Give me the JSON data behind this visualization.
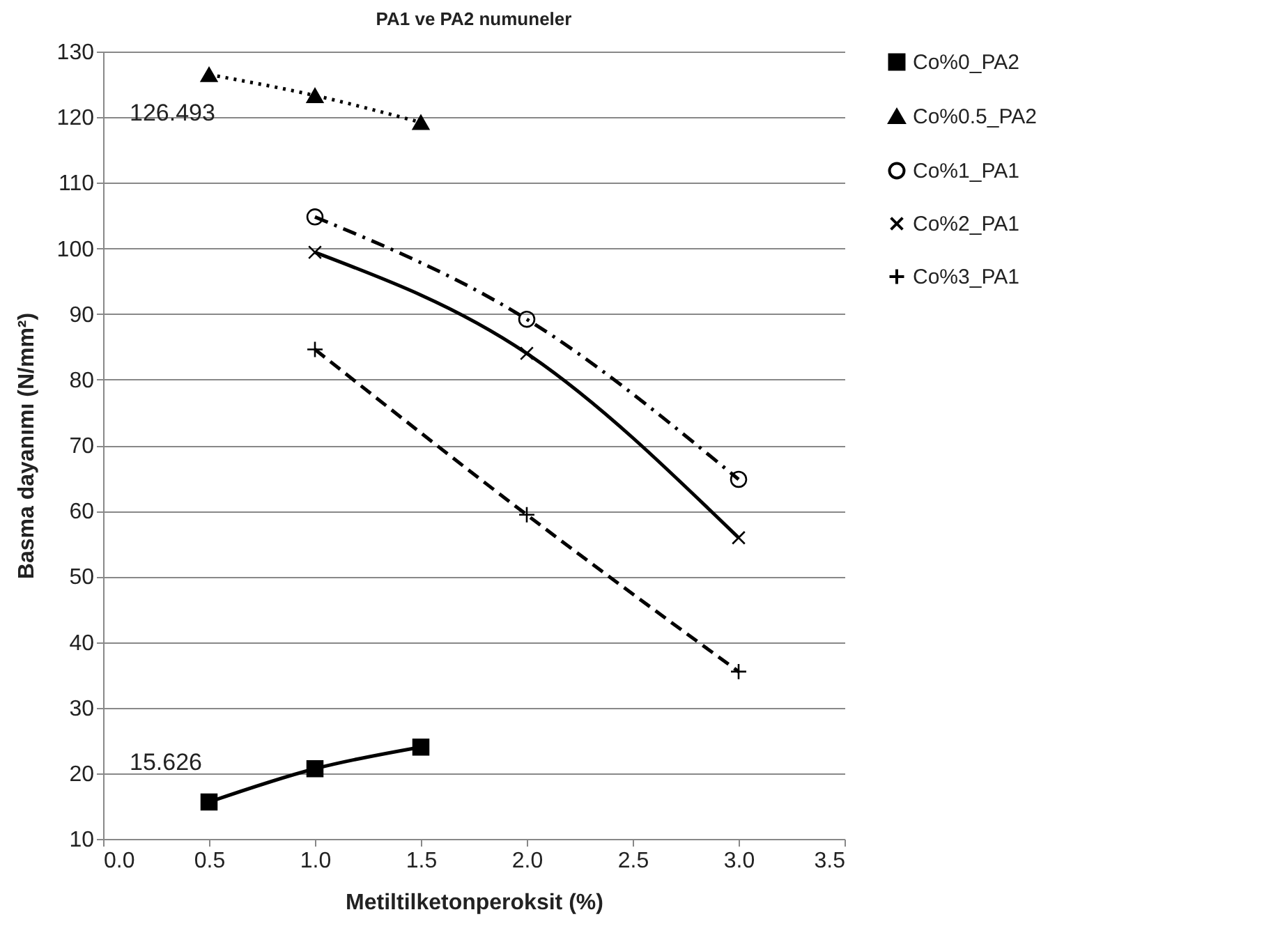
{
  "chart_data": {
    "type": "line",
    "title": "PA1 ve PA2 numuneler",
    "xlabel": "Metiltilketonperoksit (%)",
    "ylabel": "Basma dayanımı (N/mm²)",
    "xlim": [
      0,
      3.5
    ],
    "xticks": [
      {
        "value": 0,
        "label": "0.0"
      },
      {
        "value": 0.5,
        "label": "0.5"
      },
      {
        "value": 1,
        "label": "1.0"
      },
      {
        "value": 1.5,
        "label": "1.5"
      },
      {
        "value": 2,
        "label": "2.0"
      },
      {
        "value": 2.5,
        "label": "2.5"
      },
      {
        "value": 3,
        "label": "3.0"
      },
      {
        "value": 3.5,
        "label": "3.5"
      }
    ],
    "ylim": [
      10,
      130
    ],
    "yticks": [
      10,
      20,
      30,
      40,
      50,
      60,
      70,
      80,
      90,
      100,
      110,
      120,
      130
    ],
    "grid": "y",
    "legend": "right",
    "series": [
      {
        "name": "Co%0_PA2",
        "color": "#000000",
        "marker": "square",
        "line_style": "solid",
        "x": [
          0.5,
          1,
          1.5
        ],
        "values": [
          15.626,
          20.7,
          24
        ]
      },
      {
        "name": "Co%0.5_PA2",
        "color": "#000000",
        "marker": "triangle",
        "line_style": "dotted",
        "x": [
          0.5,
          1,
          1.5
        ],
        "values": [
          126.493,
          123.3,
          119.2
        ]
      },
      {
        "name": "Co%1_PA1",
        "color": "#000000",
        "marker": "circle",
        "line_style": "dashdot",
        "x": [
          1,
          2,
          3
        ],
        "values": [
          104.8,
          89.2,
          64.8
        ]
      },
      {
        "name": "Co%2_PA1",
        "color": "#000000",
        "marker": "x",
        "line_style": "solid",
        "x": [
          1,
          2,
          3
        ],
        "values": [
          99.4,
          84,
          55.9
        ]
      },
      {
        "name": "Co%3_PA1",
        "color": "#000000",
        "marker": "cross",
        "line_style": "dashed",
        "x": [
          1,
          2,
          3
        ],
        "values": [
          84.6,
          59.4,
          35.5
        ]
      }
    ],
    "annotations": [
      {
        "text": "126.493",
        "x": 0.5,
        "y": 126.493
      },
      {
        "text": "15.626",
        "x": 0.5,
        "y": 15.626
      }
    ]
  }
}
